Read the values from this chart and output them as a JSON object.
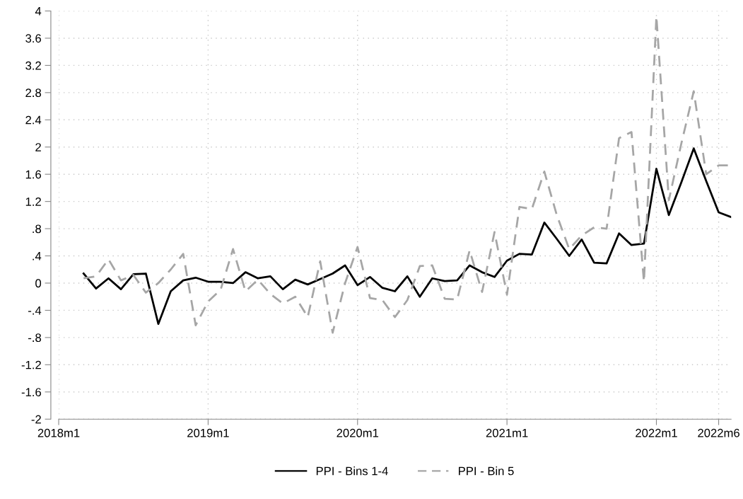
{
  "chart_data": {
    "type": "line",
    "x": [
      "2018-03",
      "2018-04",
      "2018-05",
      "2018-06",
      "2018-07",
      "2018-08",
      "2018-09",
      "2018-10",
      "2018-11",
      "2018-12",
      "2019-01",
      "2019-02",
      "2019-03",
      "2019-04",
      "2019-05",
      "2019-06",
      "2019-07",
      "2019-08",
      "2019-09",
      "2019-10",
      "2019-11",
      "2019-12",
      "2020-01",
      "2020-02",
      "2020-03",
      "2020-04",
      "2020-05",
      "2020-06",
      "2020-07",
      "2020-08",
      "2020-09",
      "2020-10",
      "2020-11",
      "2020-12",
      "2021-01",
      "2021-02",
      "2021-03",
      "2021-04",
      "2021-05",
      "2021-06",
      "2021-07",
      "2021-08",
      "2021-09",
      "2021-10",
      "2021-11",
      "2021-12",
      "2022-01",
      "2022-02",
      "2022-03",
      "2022-04",
      "2022-05",
      "2022-06",
      "2022-07"
    ],
    "series": [
      {
        "name": "PPI - Bins 1-4",
        "color": "#000000",
        "line_style": "solid",
        "values": [
          0.14,
          -0.08,
          0.07,
          -0.09,
          0.13,
          0.14,
          -0.6,
          -0.12,
          0.04,
          0.08,
          0.02,
          0.02,
          0.0,
          0.16,
          0.07,
          0.1,
          -0.09,
          0.05,
          -0.02,
          0.06,
          0.14,
          0.26,
          -0.03,
          0.09,
          -0.07,
          -0.12,
          0.1,
          -0.2,
          0.07,
          0.03,
          0.04,
          0.26,
          0.16,
          0.09,
          0.33,
          0.43,
          0.42,
          0.89,
          0.65,
          0.4,
          0.64,
          0.3,
          0.29,
          0.73,
          0.56,
          0.58,
          1.68,
          1.0,
          1.48,
          1.98,
          1.5,
          1.04,
          0.97
        ]
      },
      {
        "name": "PPI - Bin 5",
        "color": "#a6a6a6",
        "line_style": "dashed",
        "values": [
          0.07,
          0.1,
          0.35,
          0.04,
          0.12,
          -0.14,
          0.0,
          0.2,
          0.43,
          -0.62,
          -0.27,
          -0.1,
          0.5,
          -0.12,
          0.05,
          -0.16,
          -0.3,
          -0.2,
          -0.5,
          0.32,
          -0.73,
          0.0,
          0.53,
          -0.22,
          -0.25,
          -0.5,
          -0.25,
          0.25,
          0.26,
          -0.23,
          -0.24,
          0.48,
          -0.13,
          0.75,
          -0.17,
          1.12,
          1.09,
          1.64,
          1.0,
          0.5,
          0.7,
          0.82,
          0.8,
          2.13,
          2.22,
          0.02,
          3.92,
          1.22,
          2.05,
          2.82,
          1.6,
          1.73,
          1.73
        ]
      }
    ],
    "xlim": [
      "2018-01",
      "2022-07"
    ],
    "xticks": [
      {
        "value": "2018-01",
        "label": "2018m1"
      },
      {
        "value": "2019-01",
        "label": "2019m1"
      },
      {
        "value": "2020-01",
        "label": "2020m1"
      },
      {
        "value": "2021-01",
        "label": "2021m1"
      },
      {
        "value": "2022-01",
        "label": "2022m1"
      },
      {
        "value": "2022-06",
        "label": "2022m6"
      }
    ],
    "ylim": [
      -2,
      4
    ],
    "yticks": [
      {
        "value": 4,
        "label": "4"
      },
      {
        "value": 3.6,
        "label": "3.6"
      },
      {
        "value": 3.2,
        "label": "3.2"
      },
      {
        "value": 2.8,
        "label": "2.8"
      },
      {
        "value": 2.4,
        "label": "2.4"
      },
      {
        "value": 2,
        "label": "2"
      },
      {
        "value": 1.6,
        "label": "1.6"
      },
      {
        "value": 1.2,
        "label": "1.2"
      },
      {
        "value": 0.8,
        "label": ".8"
      },
      {
        "value": 0.4,
        "label": ".4"
      },
      {
        "value": 0,
        "label": "0"
      },
      {
        "value": -0.4,
        "label": "-.4"
      },
      {
        "value": -0.8,
        "label": "-.8"
      },
      {
        "value": -1.2,
        "label": "-1.2"
      },
      {
        "value": -1.6,
        "label": "-1.6"
      },
      {
        "value": -2,
        "label": "-2"
      }
    ],
    "grid": true,
    "legend": "bottom",
    "marker": "none"
  }
}
